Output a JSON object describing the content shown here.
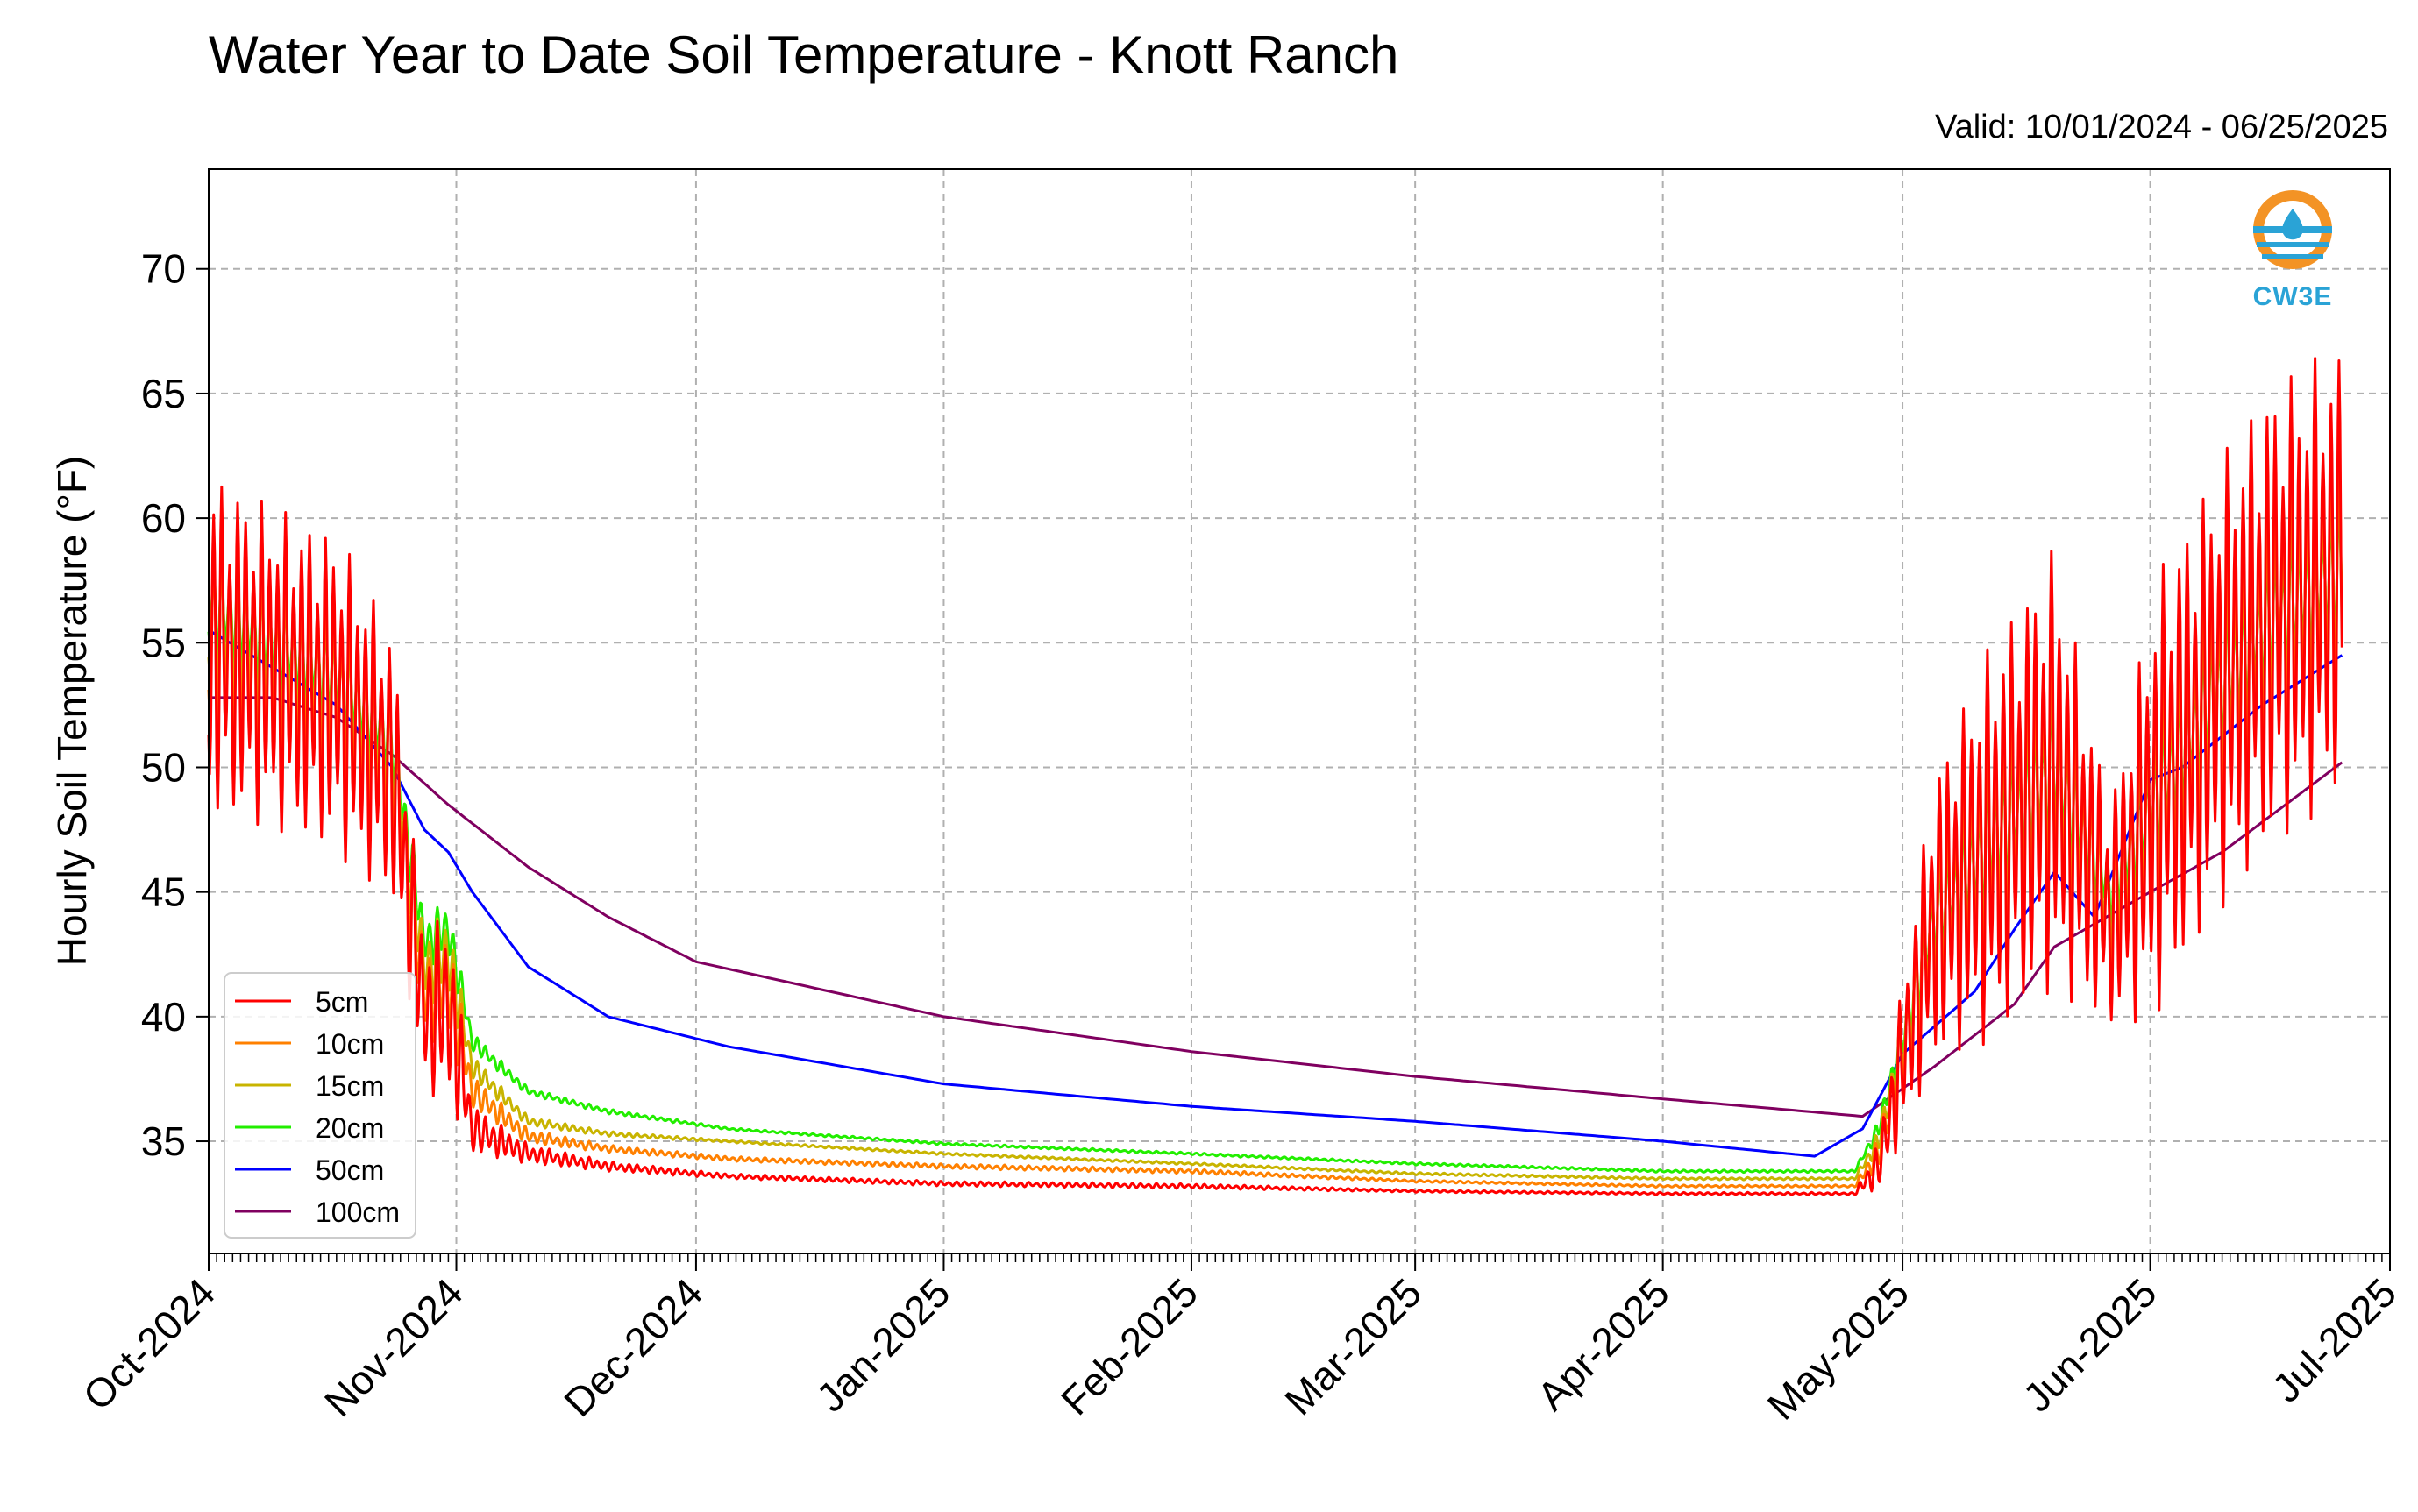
{
  "header": {
    "title": "Water Year to Date Soil Temperature - Knott Ranch",
    "valid": "Valid: 10/01/2024 - 06/25/2025"
  },
  "logo": {
    "text": "CW3E",
    "icon": "cw3e-logo-icon"
  },
  "colors": {
    "5cm": "#ff0000",
    "10cm": "#ff8000",
    "15cm": "#c8b400",
    "20cm": "#22ee00",
    "50cm": "#0000ff",
    "100cm": "#800060"
  },
  "chart_data": {
    "type": "line",
    "title": "Water Year to Date Soil Temperature - Knott Ranch",
    "xlabel": "",
    "ylabel": "Hourly Soil Temperature (°F)",
    "ylim": [
      30.5,
      74
    ],
    "xlim": [
      "2024-10-01",
      "2025-07-01"
    ],
    "x_ticks": [
      "Oct-2024",
      "Nov-2024",
      "Dec-2024",
      "Jan-2025",
      "Feb-2025",
      "Mar-2025",
      "Apr-2025",
      "May-2025",
      "Jun-2025",
      "Jul-2025"
    ],
    "y_ticks": [
      35,
      40,
      45,
      50,
      55,
      60,
      65,
      70
    ],
    "grid": true,
    "legend": "lower-left",
    "series": [
      {
        "name": "5cm",
        "x": [
          "2024-10-01",
          "2024-10-09",
          "2024-10-17",
          "2024-10-24",
          "2024-10-28",
          "2024-10-31",
          "2024-11-03",
          "2024-11-10",
          "2024-11-20",
          "2024-12-05",
          "2025-01-01",
          "2025-02-01",
          "2025-03-01",
          "2025-04-01",
          "2025-04-25",
          "2025-04-28",
          "2025-05-05",
          "2025-05-12",
          "2025-05-20",
          "2025-05-27",
          "2025-06-02",
          "2025-06-09",
          "2025-06-16",
          "2025-06-25"
        ],
        "y": [
          55.0,
          54.0,
          53.0,
          50.0,
          40.0,
          40.5,
          35.5,
          34.5,
          34.0,
          33.6,
          33.3,
          33.2,
          33.0,
          32.9,
          32.9,
          34.0,
          44.0,
          47.0,
          50.0,
          44.0,
          49.0,
          53.0,
          56.0,
          58.0
        ],
        "amp": [
          7.0,
          6.5,
          6.5,
          5.5,
          3.0,
          4.0,
          1.0,
          0.4,
          0.2,
          0.1,
          0.1,
          0.1,
          0.05,
          0.05,
          0.05,
          1.0,
          6.0,
          8.0,
          9.0,
          4.5,
          9.0,
          9.0,
          9.5,
          9.0
        ]
      },
      {
        "name": "10cm",
        "x": [
          "2024-10-01",
          "2024-10-09",
          "2024-10-17",
          "2024-10-24",
          "2024-10-28",
          "2024-10-31",
          "2024-11-03",
          "2024-11-10",
          "2024-11-20",
          "2024-12-05",
          "2025-01-01",
          "2025-02-01",
          "2025-03-01",
          "2025-04-01",
          "2025-04-25",
          "2025-04-28",
          "2025-05-05",
          "2025-05-12",
          "2025-05-20",
          "2025-05-27",
          "2025-06-02",
          "2025-06-09",
          "2025-06-16",
          "2025-06-25"
        ],
        "y": [
          55.5,
          54.3,
          53.2,
          50.3,
          41.0,
          41.5,
          37.0,
          35.2,
          34.7,
          34.3,
          34.0,
          33.8,
          33.4,
          33.2,
          33.2,
          34.5,
          44.0,
          47.0,
          50.0,
          44.2,
          49.0,
          53.0,
          56.0,
          58.0
        ],
        "amp": [
          4.5,
          4.0,
          4.0,
          3.5,
          2.0,
          2.5,
          0.7,
          0.3,
          0.15,
          0.1,
          0.1,
          0.1,
          0.05,
          0.05,
          0.05,
          0.7,
          4.0,
          5.5,
          6.0,
          3.0,
          6.0,
          6.0,
          6.0,
          6.0
        ]
      },
      {
        "name": "15cm",
        "x": [
          "2024-10-01",
          "2024-10-09",
          "2024-10-17",
          "2024-10-24",
          "2024-10-28",
          "2024-10-31",
          "2024-11-03",
          "2024-11-10",
          "2024-11-20",
          "2024-12-05",
          "2025-01-01",
          "2025-02-01",
          "2025-03-01",
          "2025-04-01",
          "2025-04-25",
          "2025-04-28",
          "2025-05-05",
          "2025-05-12",
          "2025-05-20",
          "2025-05-27",
          "2025-06-02",
          "2025-06-09",
          "2025-06-16",
          "2025-06-25"
        ],
        "y": [
          56.0,
          54.6,
          53.4,
          50.6,
          42.0,
          42.5,
          38.0,
          35.8,
          35.3,
          35.0,
          34.5,
          34.1,
          33.7,
          33.5,
          33.5,
          35.0,
          44.0,
          47.0,
          50.0,
          44.5,
          49.0,
          53.0,
          56.0,
          58.0
        ],
        "amp": [
          3.0,
          2.8,
          2.8,
          2.5,
          1.5,
          1.8,
          0.5,
          0.2,
          0.1,
          0.05,
          0.05,
          0.05,
          0.05,
          0.05,
          0.05,
          0.5,
          3.0,
          4.0,
          4.0,
          2.0,
          4.0,
          4.0,
          4.0,
          4.0
        ]
      },
      {
        "name": "20cm",
        "x": [
          "2024-10-01",
          "2024-10-09",
          "2024-10-17",
          "2024-10-24",
          "2024-10-28",
          "2024-10-31",
          "2024-11-03",
          "2024-11-10",
          "2024-11-20",
          "2024-12-05",
          "2025-01-01",
          "2025-02-01",
          "2025-03-01",
          "2025-04-01",
          "2025-04-25",
          "2025-04-28",
          "2025-05-05",
          "2025-05-12",
          "2025-05-20",
          "2025-05-27",
          "2025-06-02",
          "2025-06-09",
          "2025-06-16",
          "2025-06-25"
        ],
        "y": [
          56.5,
          55.0,
          53.6,
          51.0,
          43.0,
          43.5,
          39.0,
          37.0,
          36.2,
          35.5,
          34.9,
          34.5,
          34.1,
          33.8,
          33.8,
          35.5,
          44.0,
          47.0,
          50.0,
          45.0,
          49.0,
          53.0,
          56.0,
          58.0
        ],
        "amp": [
          2.0,
          2.0,
          2.0,
          1.8,
          1.0,
          1.2,
          0.4,
          0.15,
          0.1,
          0.05,
          0.05,
          0.05,
          0.05,
          0.05,
          0.05,
          0.4,
          2.0,
          3.0,
          3.0,
          1.5,
          3.0,
          3.0,
          3.0,
          3.0
        ]
      },
      {
        "name": "50cm",
        "x": [
          "2024-10-01",
          "2024-10-09",
          "2024-10-17",
          "2024-10-24",
          "2024-10-28",
          "2024-10-31",
          "2024-11-03",
          "2024-11-10",
          "2024-11-20",
          "2024-12-05",
          "2025-01-01",
          "2025-02-01",
          "2025-03-01",
          "2025-04-01",
          "2025-04-20",
          "2025-04-26",
          "2025-05-01",
          "2025-05-10",
          "2025-05-15",
          "2025-05-20",
          "2025-05-25",
          "2025-06-01",
          "2025-06-05",
          "2025-06-15",
          "2025-06-25"
        ],
        "y": [
          55.5,
          54.0,
          52.5,
          50.0,
          47.5,
          46.6,
          45.0,
          42.0,
          40.0,
          38.8,
          37.3,
          36.4,
          35.8,
          35.0,
          34.4,
          35.5,
          38.5,
          41.0,
          43.5,
          45.8,
          44.0,
          49.5,
          50.0,
          52.5,
          54.5
        ],
        "amp": []
      },
      {
        "name": "100cm",
        "x": [
          "2024-10-01",
          "2024-10-09",
          "2024-10-17",
          "2024-10-24",
          "2024-10-31",
          "2024-11-10",
          "2024-11-20",
          "2024-12-01",
          "2025-01-01",
          "2025-02-01",
          "2025-03-01",
          "2025-04-01",
          "2025-04-26",
          "2025-05-05",
          "2025-05-15",
          "2025-05-20",
          "2025-06-01",
          "2025-06-10",
          "2025-06-25"
        ],
        "y": [
          52.8,
          52.8,
          52.0,
          50.5,
          48.5,
          46.0,
          44.0,
          42.2,
          40.0,
          38.6,
          37.6,
          36.7,
          36.0,
          38.0,
          40.5,
          42.8,
          45.0,
          46.6,
          50.2
        ],
        "amp": []
      }
    ]
  }
}
